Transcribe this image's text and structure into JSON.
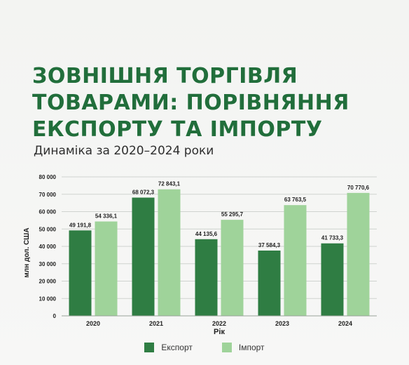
{
  "title_lines": [
    "ЗОВНІШНЯ ТОРГІВЛЯ",
    "ТОВАРАМИ: ПОРІВНЯННЯ",
    "ЕКСПОРТУ ТА ІМПОРТУ"
  ],
  "subtitle": "Динаміка за 2020–2024 роки",
  "colors": {
    "export": "#2f7d43",
    "import": "#9fd39a",
    "title": "#216e3b"
  },
  "chart_data": {
    "type": "bar",
    "categories": [
      "2020",
      "2021",
      "2022",
      "2023",
      "2024"
    ],
    "series": [
      {
        "name": "Експорт",
        "values": [
          49191.8,
          68072.3,
          44135.6,
          37584.3,
          41733.3
        ],
        "labels": [
          "49 191,8",
          "68 072,3",
          "44 135,6",
          "37 584,3",
          "41 733,3"
        ]
      },
      {
        "name": "Імпорт",
        "values": [
          54336.1,
          72843.1,
          55295.7,
          63763.5,
          70770.6
        ],
        "labels": [
          "54 336,1",
          "72 843,1",
          "55 295,7",
          "63 763,5",
          "70 770,6"
        ]
      }
    ],
    "xlabel": "Рік",
    "ylabel": "млн дол. США",
    "ylim": [
      0,
      80000
    ],
    "yticks": [
      0,
      10000,
      20000,
      30000,
      40000,
      50000,
      60000,
      70000,
      80000
    ],
    "ytick_labels": [
      "0",
      "10 000",
      "20 000",
      "30 000",
      "40 000",
      "50 000",
      "60 000",
      "70 000",
      "80 000"
    ],
    "grid": true,
    "legend_position": "bottom-center"
  }
}
